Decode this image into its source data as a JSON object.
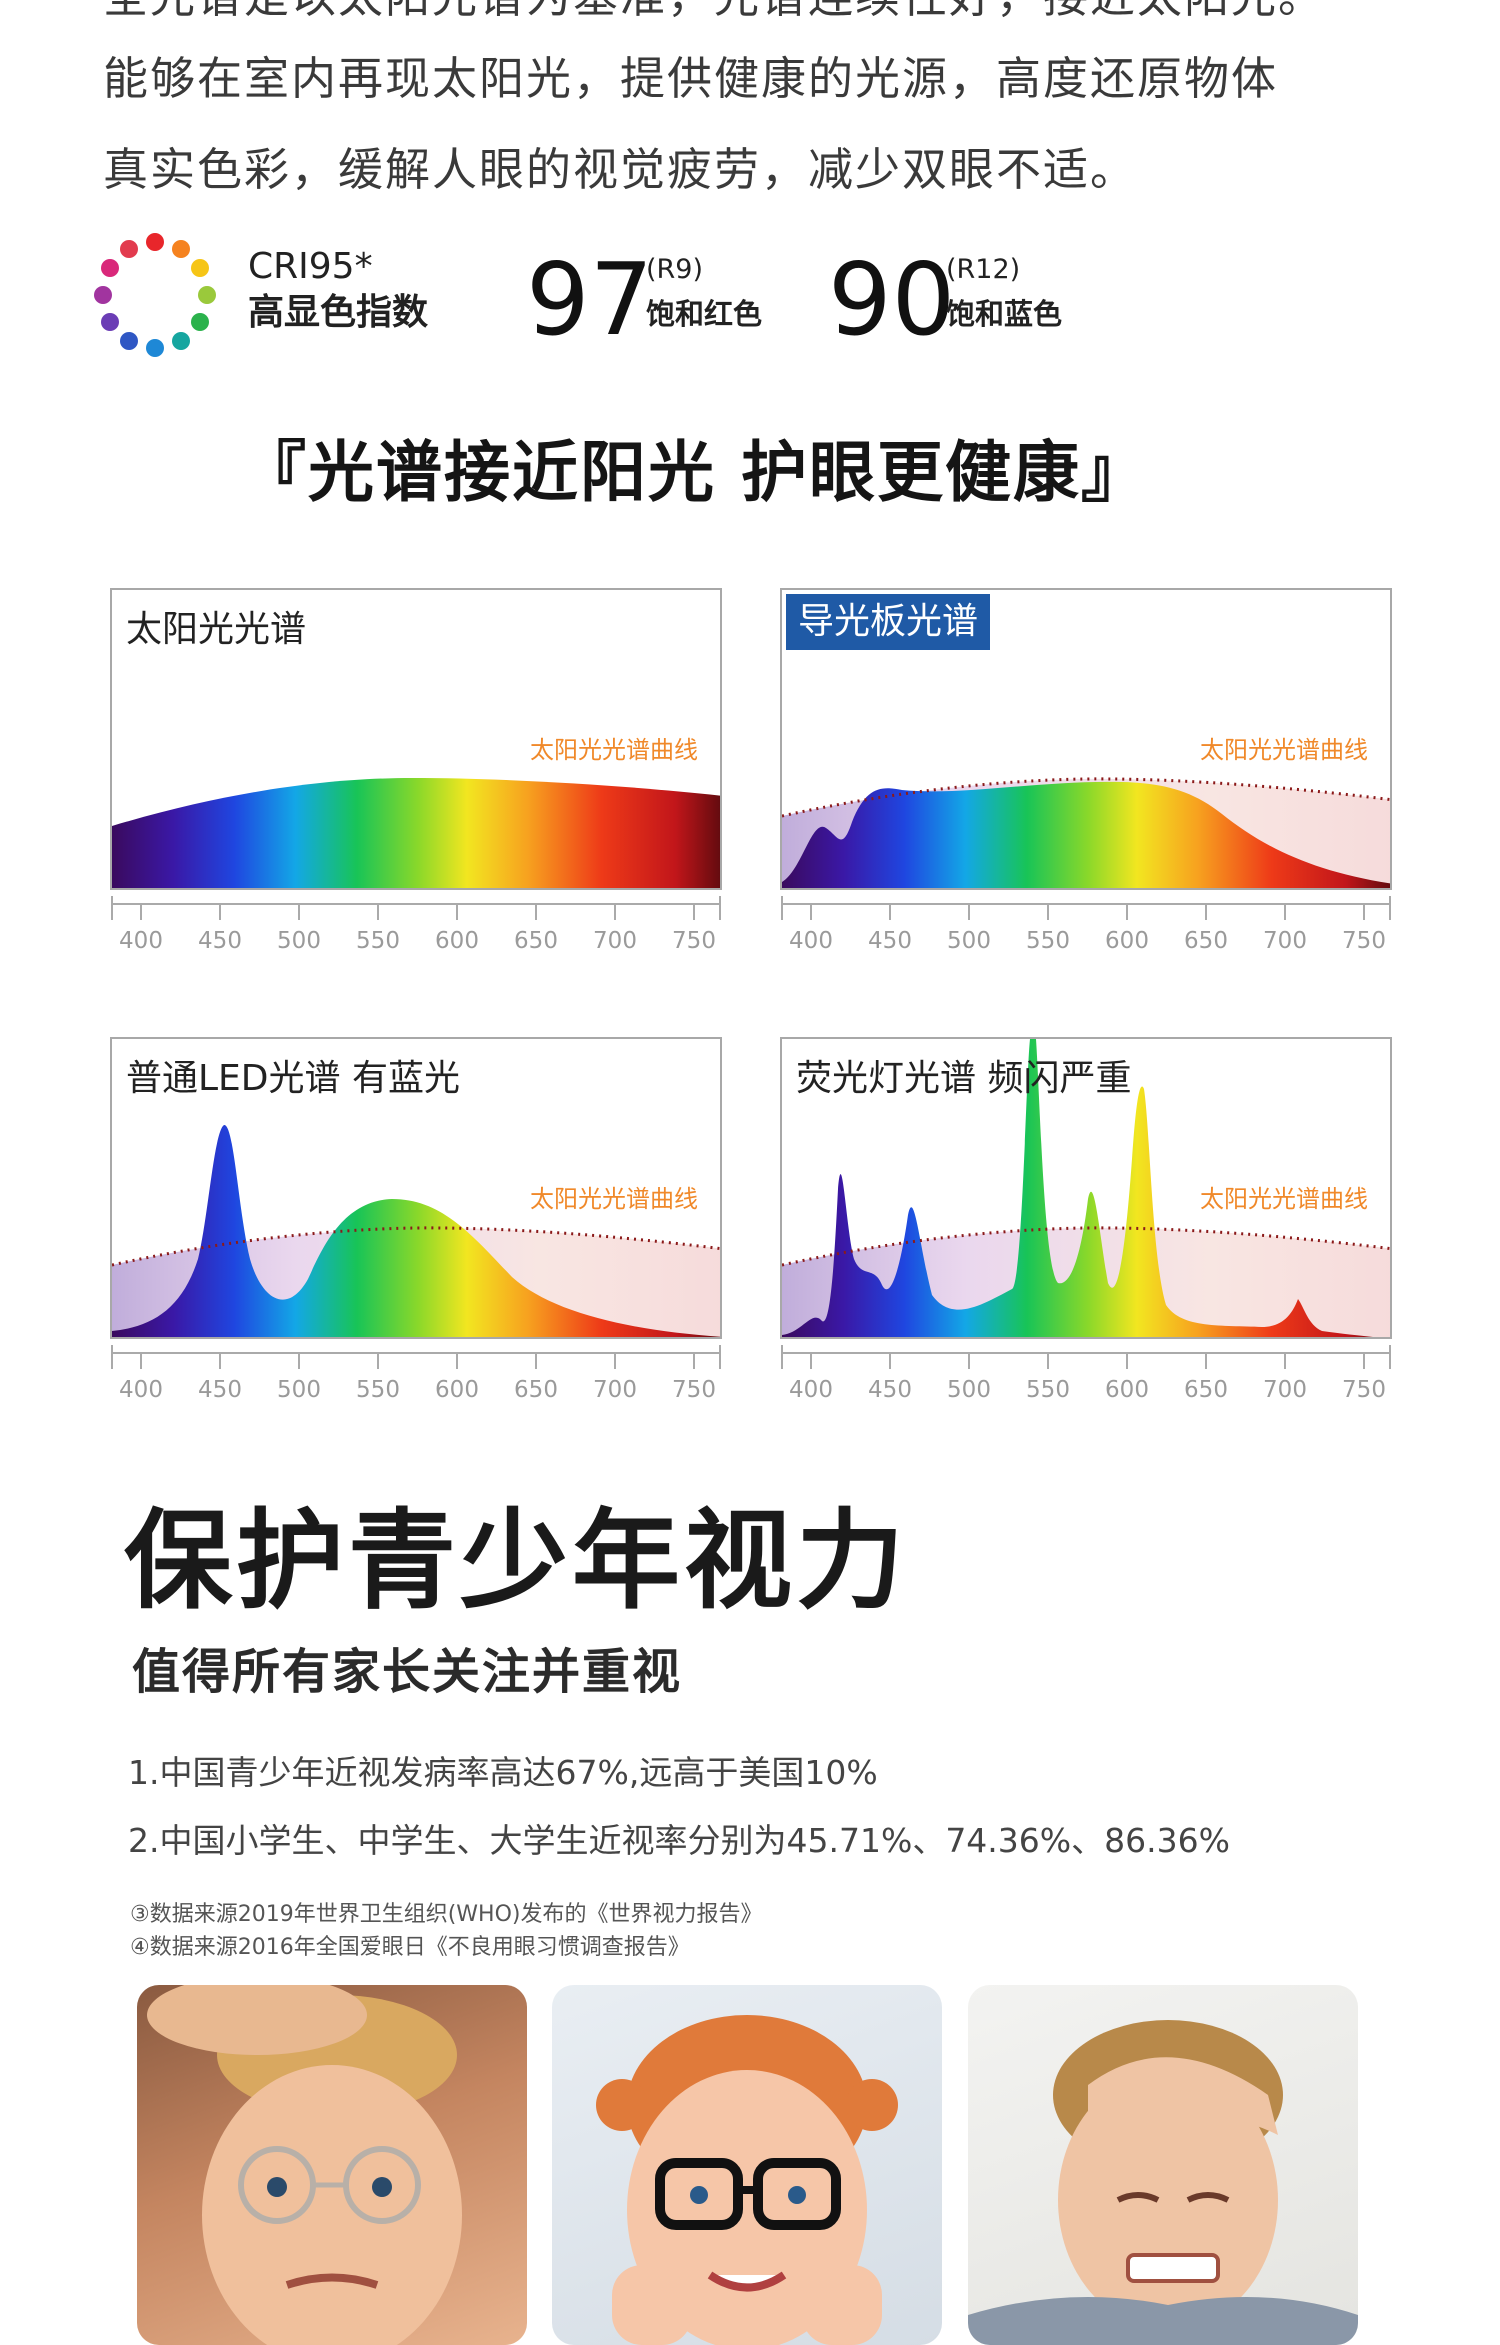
{
  "intro": {
    "line1": "全光谱是以太阳光谱为基准，光谱连续性好，接近太阳光。",
    "line2": "能够在室内再现太阳光，提供健康的光源，高度还原物体",
    "line3": "真实色彩，缓解人眼的视觉疲劳，减少双眼不适。"
  },
  "cri": {
    "code": "CRI95*",
    "label": "高显色指数",
    "r9_value": "97",
    "r9_code": "(R9)",
    "r9_label": "饱和红色",
    "r12_value": "90",
    "r12_code": "(R12)",
    "r12_label": "饱和蓝色"
  },
  "spectra_section": {
    "title": "『光谱接近阳光  护眼更健康』",
    "sun_curve_label": "太阳光光谱曲线",
    "axis_ticks": [
      "400",
      "450",
      "500",
      "550",
      "600",
      "650",
      "700",
      "750"
    ],
    "panels": [
      {
        "title": "太阳光光谱"
      },
      {
        "title": "导光板光谱"
      },
      {
        "title": "普通LED光谱 有蓝光"
      },
      {
        "title": "荧光灯光谱 频闪严重"
      }
    ]
  },
  "youth_section": {
    "title": "保护青少年视力",
    "subtitle": "值得所有家长关注并重视",
    "fact1": "1.中国青少年近视发病率高达67%,远高于美国10%",
    "fact2": "2.中国小学生、中学生、大学生近视率分别为45.71%、74.36%、86.36%",
    "source1": "③数据来源2019年世界卫生组织(WHO)发布的《世界视力报告》",
    "source2": "④数据来源2016年全国爱眼日《不良用眼习惯调查报告》"
  },
  "colors": {
    "highlight_blue": "#1f5aa6",
    "sun_label_orange": "#f0892a",
    "sun_curve_dots": "#8b1a1a"
  }
}
